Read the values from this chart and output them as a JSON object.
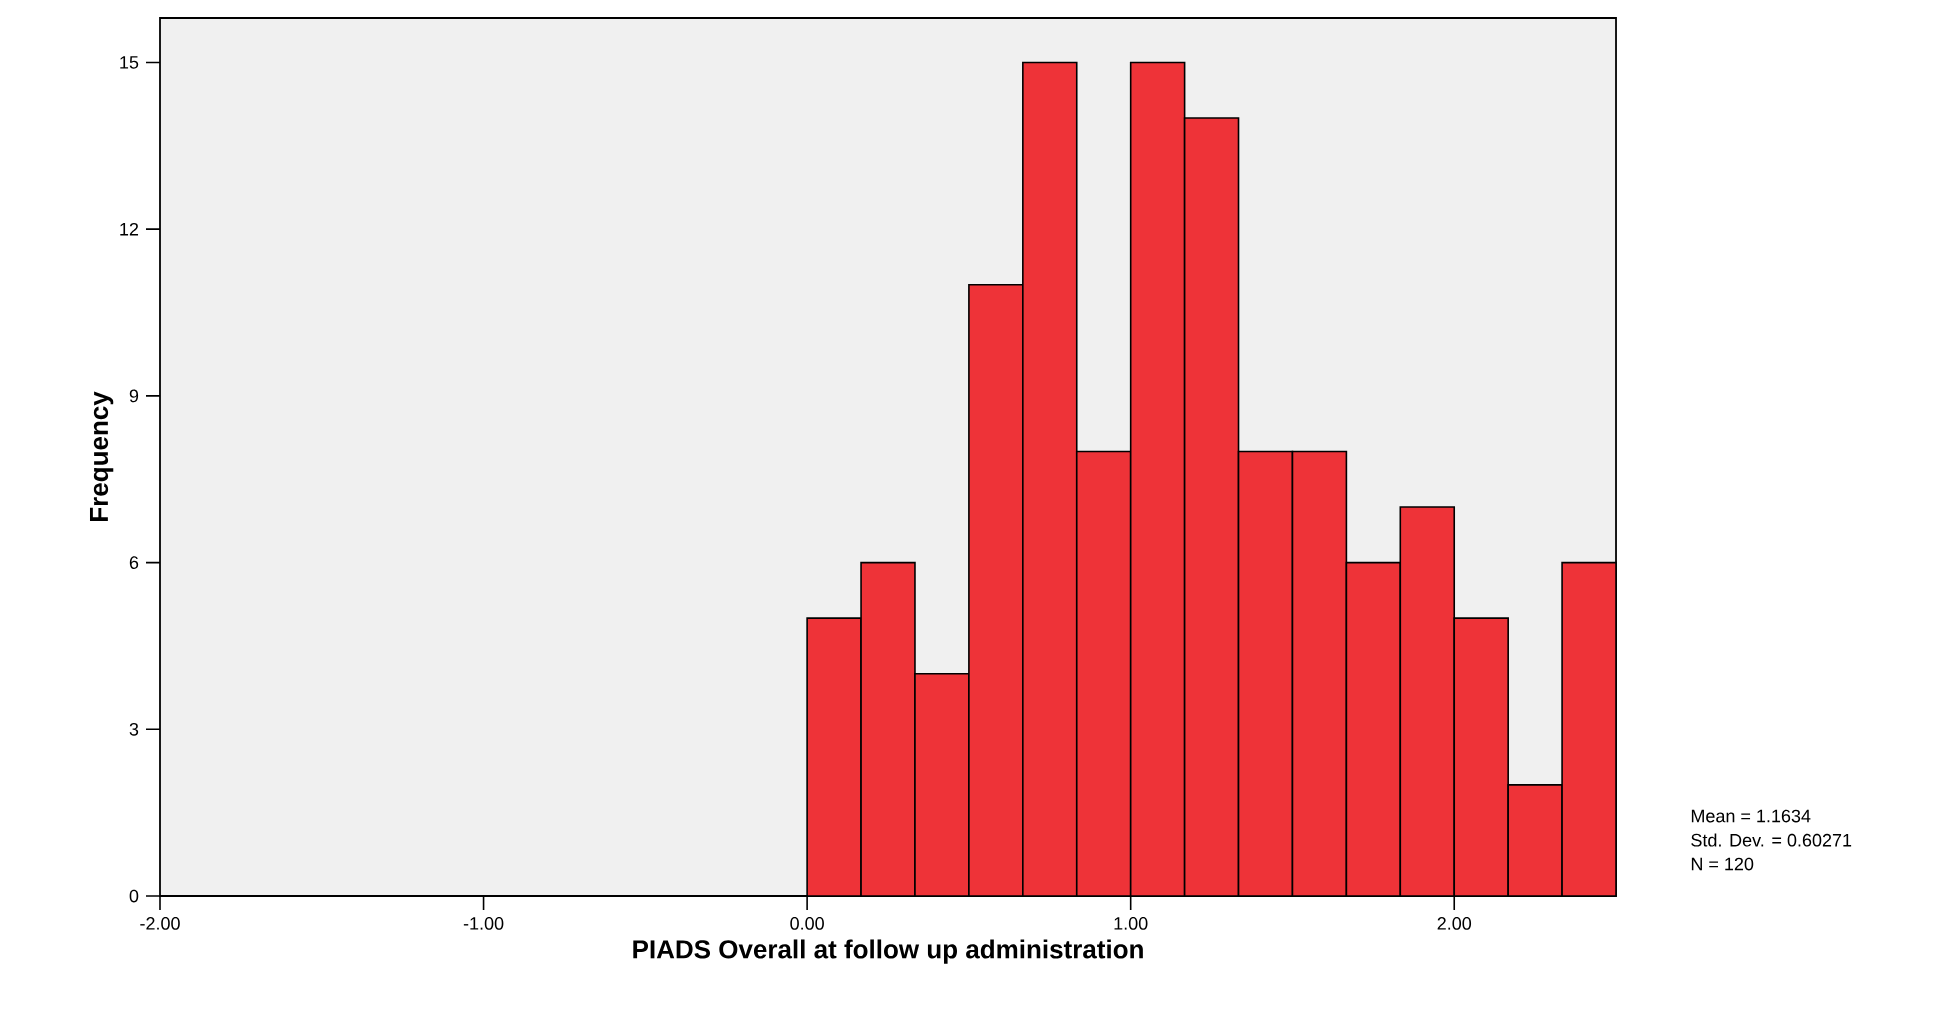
{
  "chart_data": {
    "type": "histogram",
    "xlabel": "PIADS Overall at follow up administration",
    "ylabel": "Frequency",
    "bins": [
      0,
      0.1667,
      0.3333,
      0.5,
      0.6667,
      0.8333,
      1,
      1.1667,
      1.3333,
      1.5,
      1.6667,
      1.8333,
      2,
      2.1667,
      2.3333,
      2.5
    ],
    "values": [
      5,
      6,
      4,
      11,
      15,
      8,
      15,
      14,
      8,
      8,
      6,
      7,
      5,
      2,
      6
    ],
    "color": "#ee3338",
    "xlim": [
      -2,
      2.5
    ],
    "xticks": [
      {
        "value": -2,
        "label": "-2.00"
      },
      {
        "value": -1,
        "label": "-1.00"
      },
      {
        "value": 0,
        "label": "0.00"
      },
      {
        "value": 1,
        "label": "1.00"
      },
      {
        "value": 2,
        "label": "2.00"
      }
    ],
    "ylim": [
      0,
      15.8
    ],
    "yticks": [
      0,
      3,
      6,
      9,
      12,
      15
    ],
    "grid": false,
    "annotations": [
      "Mean = 1.1634",
      "Std. Dev. = 0.60271",
      "N = 120"
    ]
  }
}
